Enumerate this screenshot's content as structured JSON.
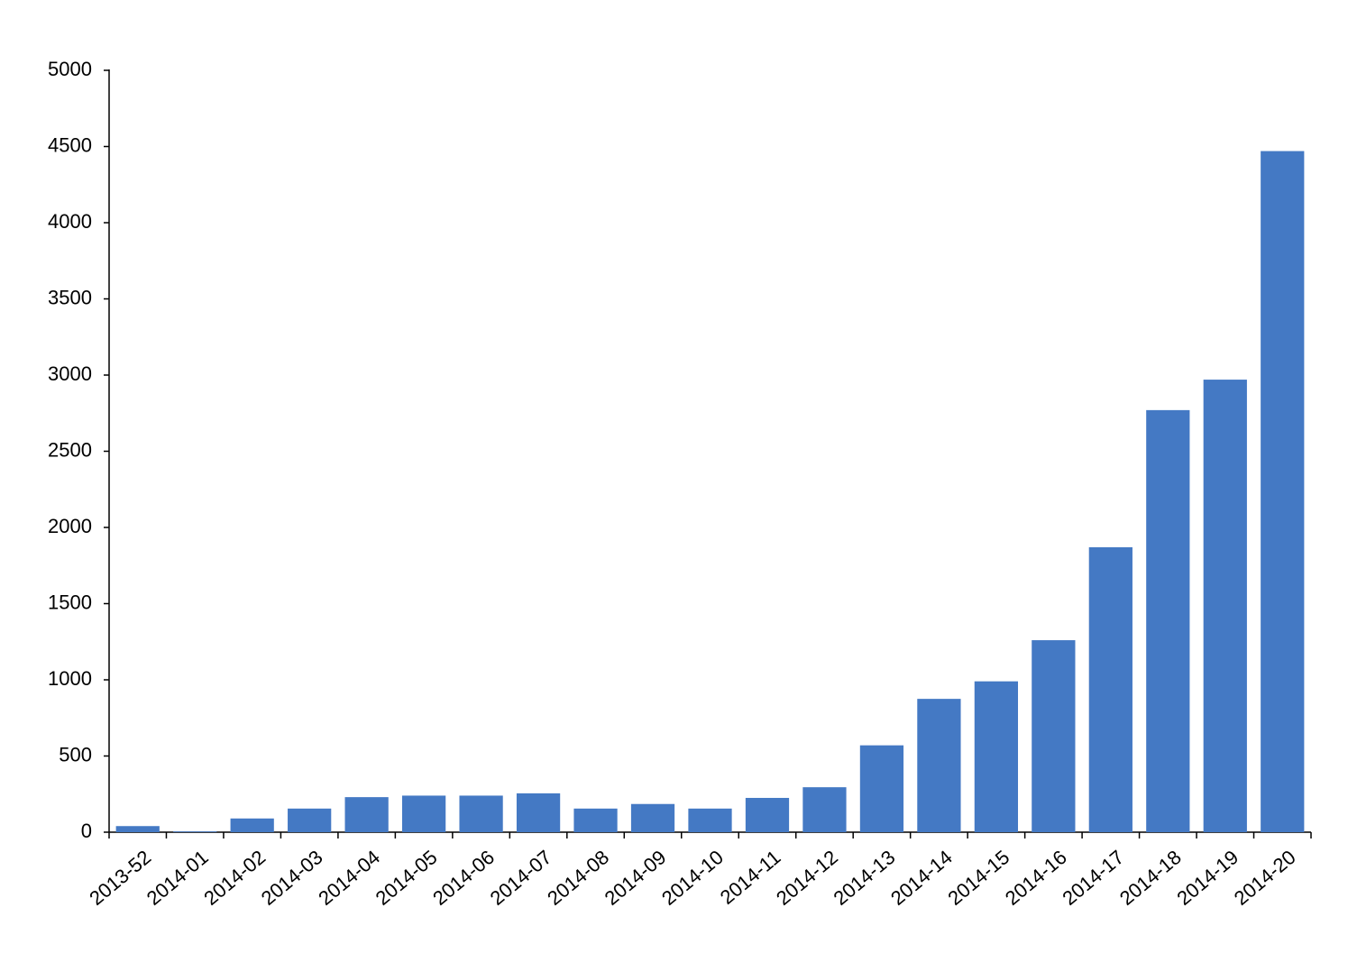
{
  "chart_data": {
    "type": "bar",
    "categories": [
      "2013-52",
      "2014-01",
      "2014-02",
      "2014-03",
      "2014-04",
      "2014-05",
      "2014-06",
      "2014-07",
      "2014-08",
      "2014-09",
      "2014-10",
      "2014-11",
      "2014-12",
      "2014-13",
      "2014-14",
      "2014-15",
      "2014-16",
      "2014-17",
      "2014-18",
      "2014-19",
      "2014-20"
    ],
    "values": [
      40,
      5,
      90,
      155,
      230,
      240,
      240,
      255,
      155,
      185,
      155,
      225,
      295,
      570,
      875,
      990,
      1260,
      1870,
      2770,
      2970,
      4470
    ],
    "color": "#4479c4",
    "ylim": [
      0,
      5000
    ],
    "yticks": [
      0,
      500,
      1000,
      1500,
      2000,
      2500,
      3000,
      3500,
      4000,
      4500,
      5000
    ],
    "grid": false
  }
}
